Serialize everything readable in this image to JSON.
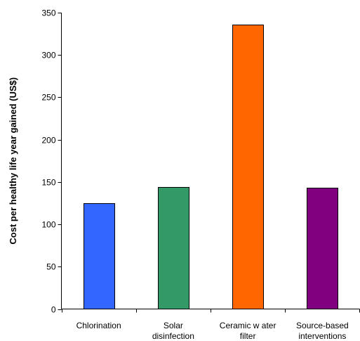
{
  "chart_data": {
    "type": "bar",
    "title": "",
    "xlabel": "",
    "ylabel": "Cost per healthy life year gained (US$)",
    "ylim": [
      0,
      350
    ],
    "yticks": [
      0,
      50,
      100,
      150,
      200,
      250,
      300,
      350
    ],
    "grid": false,
    "legend": "none",
    "categories": [
      [
        "Chlorination"
      ],
      [
        "Solar",
        "disinfection"
      ],
      [
        "Ceramic w ater",
        "filter"
      ],
      [
        "Source-based",
        "interventions"
      ]
    ],
    "values": [
      125,
      144,
      336,
      143
    ],
    "colors": [
      "#3366ff",
      "#339966",
      "#ff6600",
      "#800080"
    ]
  }
}
